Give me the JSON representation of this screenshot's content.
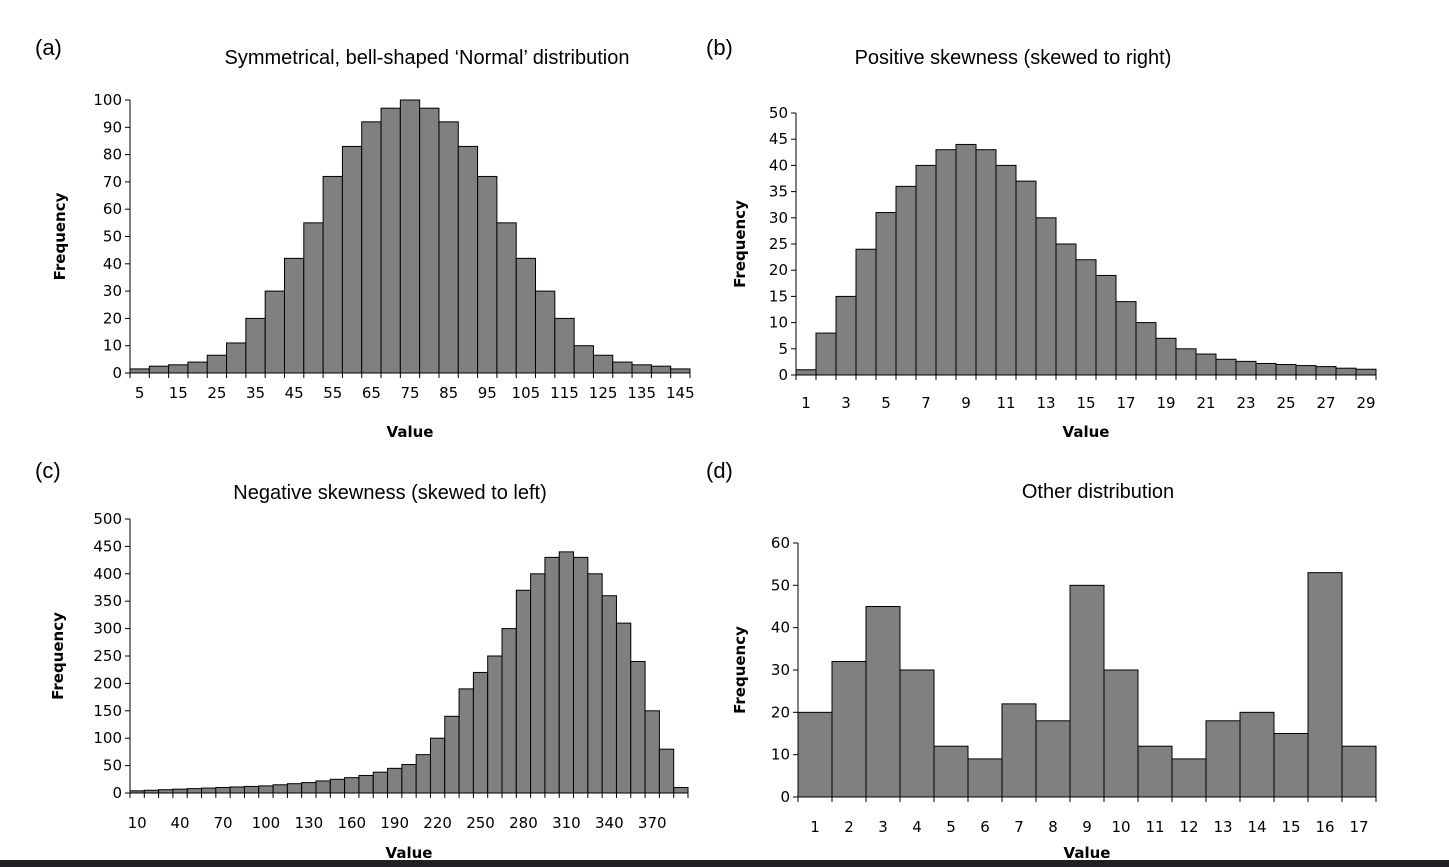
{
  "chart_data": [
    {
      "type": "bar",
      "panel_label": "(a)",
      "title": "Symmetrical, bell-shaped ‘Normal’ distribution",
      "xlabel": "Value",
      "ylabel": "Frequency",
      "ylim": [
        0,
        100
      ],
      "yticks": [
        0,
        10,
        20,
        30,
        40,
        50,
        60,
        70,
        80,
        90,
        100
      ],
      "xtick_labels": [
        "5",
        "15",
        "25",
        "35",
        "45",
        "55",
        "65",
        "75",
        "85",
        "95",
        "105",
        "115",
        "125",
        "135",
        "145"
      ],
      "categories": [
        "5",
        "10",
        "15",
        "20",
        "25",
        "30",
        "35",
        "40",
        "45",
        "50",
        "55",
        "60",
        "65",
        "70",
        "75",
        "80",
        "85",
        "90",
        "95",
        "100",
        "105",
        "110",
        "115",
        "120",
        "125",
        "130",
        "135",
        "140",
        "145"
      ],
      "values": [
        1.5,
        2.5,
        3,
        4,
        6.5,
        11,
        20,
        30,
        42,
        55,
        72,
        83,
        92,
        97,
        100,
        97,
        92,
        83,
        72,
        55,
        42,
        30,
        20,
        10,
        6.5,
        4,
        3,
        2.5,
        1.5
      ],
      "grid": false
    },
    {
      "type": "bar",
      "panel_label": "(b)",
      "title": "Positive skewness (skewed to right)",
      "xlabel": "Value",
      "ylabel": "Frequency",
      "ylim": [
        0,
        50
      ],
      "yticks": [
        0,
        5,
        10,
        15,
        20,
        25,
        30,
        35,
        40,
        45,
        50
      ],
      "xtick_labels": [
        "1",
        "3",
        "5",
        "7",
        "9",
        "11",
        "13",
        "15",
        "17",
        "19",
        "21",
        "23",
        "25",
        "27",
        "29"
      ],
      "categories": [
        "1",
        "2",
        "3",
        "4",
        "5",
        "6",
        "7",
        "8",
        "9",
        "10",
        "11",
        "12",
        "13",
        "14",
        "15",
        "16",
        "17",
        "18",
        "19",
        "20",
        "21",
        "22",
        "23",
        "24",
        "25",
        "26",
        "27",
        "28",
        "29"
      ],
      "values": [
        1,
        8,
        15,
        24,
        31,
        36,
        40,
        43,
        44,
        43,
        40,
        37,
        30,
        25,
        22,
        19,
        14,
        10,
        7,
        5,
        4,
        3,
        2.6,
        2.2,
        2,
        1.8,
        1.6,
        1.3,
        1.1
      ],
      "grid": false
    },
    {
      "type": "bar",
      "panel_label": "(c)",
      "title": "Negative skewness (skewed to left)",
      "xlabel": "Value",
      "ylabel": "Frequency",
      "ylim": [
        0,
        500
      ],
      "yticks": [
        0,
        50,
        100,
        150,
        200,
        250,
        300,
        350,
        400,
        450,
        500
      ],
      "xtick_labels": [
        "10",
        "40",
        "70",
        "100",
        "130",
        "160",
        "190",
        "220",
        "250",
        "280",
        "310",
        "340",
        "370"
      ],
      "categories": [
        "10",
        "20",
        "30",
        "40",
        "50",
        "60",
        "70",
        "80",
        "90",
        "100",
        "110",
        "120",
        "130",
        "140",
        "150",
        "160",
        "170",
        "180",
        "190",
        "200",
        "210",
        "220",
        "230",
        "240",
        "250",
        "260",
        "270",
        "280",
        "290",
        "300",
        "310",
        "320",
        "330",
        "340",
        "350",
        "360",
        "370",
        "380",
        "390"
      ],
      "values": [
        4,
        5,
        6,
        7,
        8,
        9,
        10,
        11,
        12,
        13,
        15,
        17,
        19,
        22,
        25,
        28,
        32,
        38,
        45,
        52,
        70,
        100,
        140,
        190,
        220,
        250,
        300,
        370,
        400,
        430,
        440,
        430,
        400,
        360,
        310,
        240,
        150,
        80,
        10
      ],
      "grid": false
    },
    {
      "type": "bar",
      "panel_label": "(d)",
      "title": "Other distribution",
      "xlabel": "Value",
      "ylabel": "Frequency",
      "ylim": [
        0,
        60
      ],
      "yticks": [
        0,
        10,
        20,
        30,
        40,
        50,
        60
      ],
      "xtick_labels": [
        "1",
        "2",
        "3",
        "4",
        "5",
        "6",
        "7",
        "8",
        "9",
        "10",
        "11",
        "12",
        "13",
        "14",
        "15",
        "16",
        "17"
      ],
      "categories": [
        "1",
        "2",
        "3",
        "4",
        "5",
        "6",
        "7",
        "8",
        "9",
        "10",
        "11",
        "12",
        "13",
        "14",
        "15",
        "16",
        "17"
      ],
      "values": [
        20,
        32,
        45,
        30,
        12,
        9,
        22,
        18,
        50,
        30,
        12,
        9,
        18,
        20,
        15,
        53,
        12
      ],
      "grid": false
    }
  ]
}
